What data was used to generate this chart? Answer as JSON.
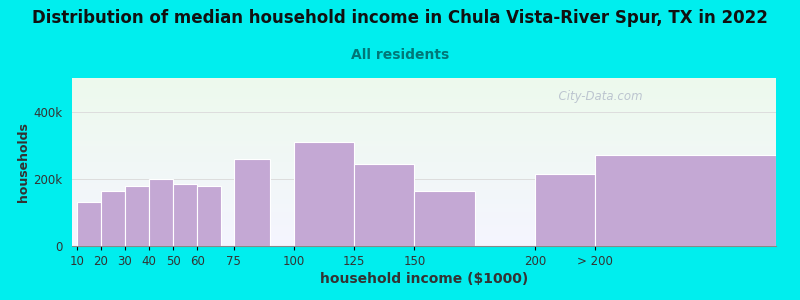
{
  "title": "Distribution of median household income in Chula Vista-River Spur, TX in 2022",
  "subtitle": "All residents",
  "xlabel": "household income ($1000)",
  "ylabel": "households",
  "title_fontsize": 12,
  "subtitle_fontsize": 10,
  "xlabel_fontsize": 10,
  "ylabel_fontsize": 9,
  "background_color": "#00EEEE",
  "plot_bg_top_color": "#edfaed",
  "plot_bg_bottom_color": "#f5f5ff",
  "bar_color": "#C4A8D4",
  "bar_edge_color": "#ffffff",
  "categories": [
    "10",
    "20",
    "30",
    "40",
    "50",
    "60",
    "75",
    "100",
    "125",
    "150",
    "200",
    "> 200"
  ],
  "values": [
    130000,
    165000,
    180000,
    200000,
    185000,
    180000,
    260000,
    310000,
    245000,
    165000,
    215000,
    270000
  ],
  "positions": [
    10,
    20,
    30,
    40,
    50,
    60,
    75,
    100,
    125,
    150,
    200,
    225
  ],
  "widths": [
    10,
    10,
    10,
    10,
    10,
    10,
    15,
    25,
    25,
    25,
    25,
    75
  ],
  "ylim": [
    0,
    500000
  ],
  "yticks": [
    0,
    200000,
    400000
  ],
  "xlim": [
    8,
    300
  ],
  "xtick_positions": [
    10,
    20,
    30,
    40,
    50,
    60,
    75,
    100,
    125,
    150,
    200,
    225
  ],
  "watermark": "  City-Data.com"
}
